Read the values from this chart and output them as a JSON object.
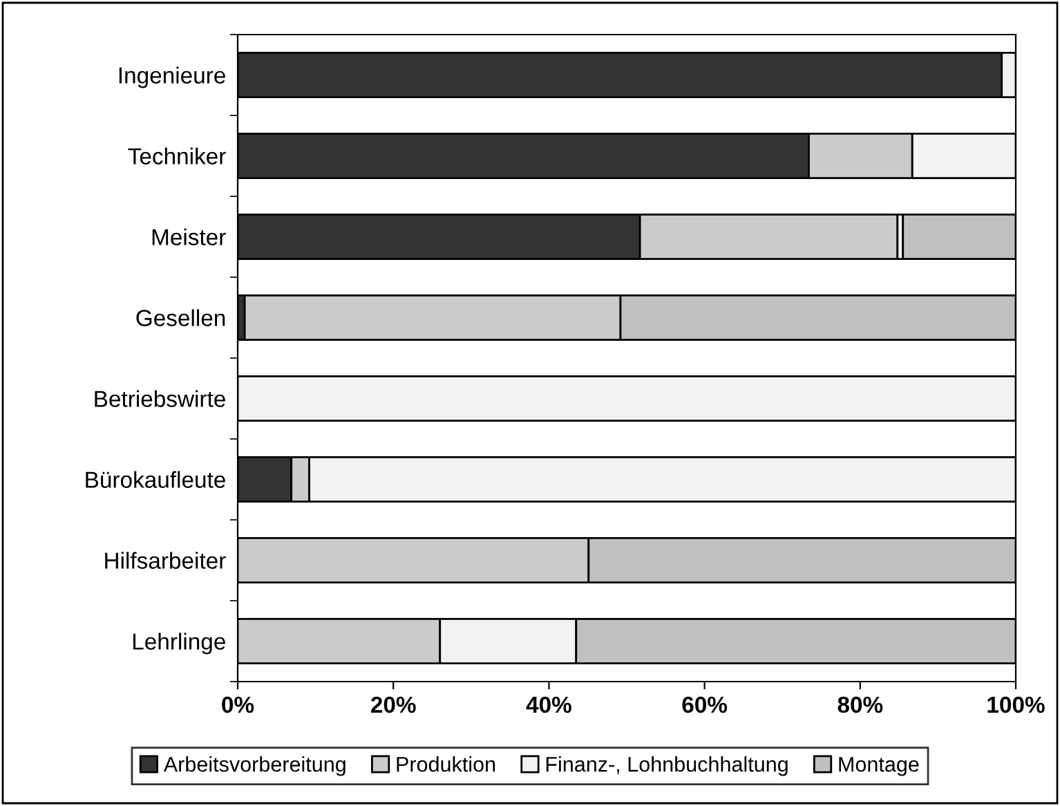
{
  "chart_data": {
    "type": "bar",
    "orientation": "horizontal",
    "stacked": true,
    "categories": [
      "Ingenieure",
      "Techniker",
      "Meister",
      "Gesellen",
      "Betriebswirte",
      "Bürokaufleute",
      "Hilfsarbeiter",
      "Lehrlinge"
    ],
    "series": [
      {
        "name": "Arbeitsvorbereitung",
        "color": "#333333",
        "values": [
          98.2,
          73.4,
          51.7,
          0.9,
          null,
          6.9,
          null,
          null
        ]
      },
      {
        "name": "Produktion",
        "color": "#cbcbcb",
        "values": [
          null,
          13.3,
          33.1,
          48.3,
          null,
          2.3,
          45.1,
          26.0
        ]
      },
      {
        "name": "Finanz-, Lohnbuchhaltung",
        "color": "#f2f2f2",
        "values": [
          1.8,
          13.3,
          0.7,
          null,
          100,
          90.8,
          null,
          17.5
        ]
      },
      {
        "name": "Montage",
        "color": "#c0c0c0",
        "values": [
          null,
          null,
          14.5,
          50.8,
          null,
          null,
          54.9,
          56.5
        ]
      }
    ],
    "xlim": [
      0,
      100
    ],
    "xticks": [
      {
        "value": 0,
        "label": "0%"
      },
      {
        "value": 20,
        "label": "20%"
      },
      {
        "value": 40,
        "label": "40%"
      },
      {
        "value": 60,
        "label": "60%"
      },
      {
        "value": 80,
        "label": "80%"
      },
      {
        "value": 100,
        "label": "100%"
      }
    ],
    "grid": false,
    "legend": "bottom"
  }
}
